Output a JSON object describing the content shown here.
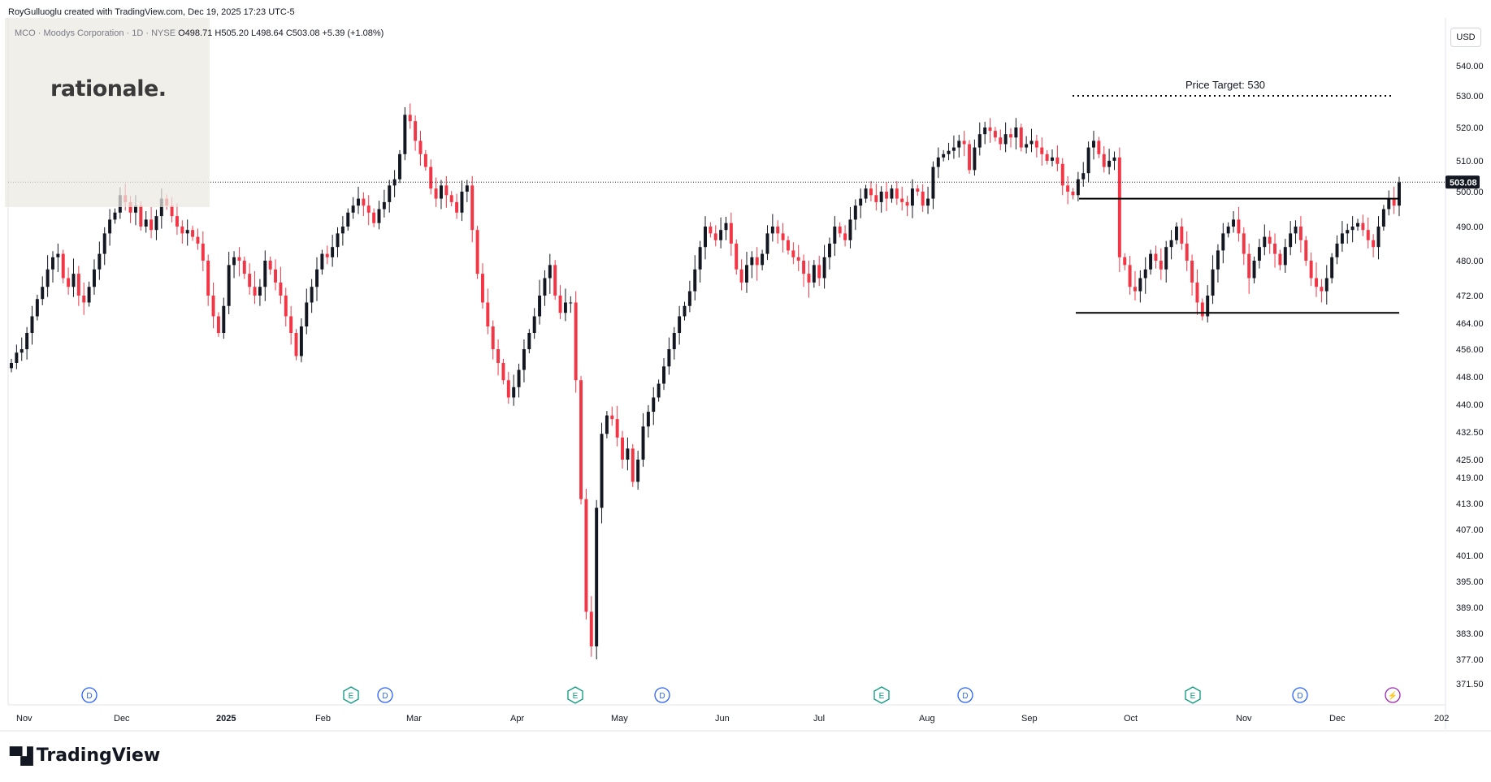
{
  "header": {
    "credit": "RoyGulluoglu created with TradingView.com, Dec 19, 2025 17:23 UTC-5",
    "symbol": "MCO · Moodys Corporation · 1D · NYSE",
    "ohlc": "O498.71  H505.20  L498.64  C503.08  +5.39 (+1.08%)"
  },
  "watermark": {
    "logo_text": "rationale."
  },
  "brand": {
    "name": "TradingView"
  },
  "price_scale": {
    "currency": "USD",
    "last_price_label": "503.08"
  },
  "annotation": {
    "price_target_label": "Price Target: 530"
  },
  "colors": {
    "up": "#131722",
    "down": "#f23645",
    "line": "#000000",
    "event_blue": "#2962ff",
    "event_green": "#089981",
    "event_purple": "#9c27b0"
  },
  "chart_data": {
    "type": "candlestick",
    "title": "MCO · Moodys Corporation · 1D · NYSE",
    "y_ticks": [
      371.5,
      377.0,
      383.0,
      389.0,
      395.0,
      401.0,
      407.0,
      413.0,
      419.0,
      425.0,
      432.5,
      440.0,
      448.0,
      456.0,
      464.0,
      472.0,
      480.0,
      490.0,
      500.0,
      510.0,
      520.0,
      530.0,
      540.0
    ],
    "y_tick_labels": [
      "371.50",
      "377.00",
      "383.00",
      "389.00",
      "395.00",
      "401.00",
      "407.00",
      "413.00",
      "419.00",
      "425.00",
      "432.50",
      "440.00",
      "448.00",
      "456.00",
      "464.00",
      "472.00",
      "480.00",
      "490.00",
      "500.00",
      "510.00",
      "520.00",
      "530.00",
      "540.00"
    ],
    "x_tick_labels": [
      "Nov",
      "Dec",
      "2025",
      "Feb",
      "Mar",
      "Apr",
      "May",
      "Jun",
      "Jul",
      "Aug",
      "Sep",
      "Oct",
      "Nov",
      "Dec",
      "202"
    ],
    "last_price": 503.08,
    "levels": [
      {
        "name": "price target",
        "value": 530,
        "style": "dotted"
      },
      {
        "name": "range top",
        "value": 498,
        "style": "solid"
      },
      {
        "name": "range bottom",
        "value": 467,
        "style": "solid"
      }
    ],
    "events": [
      {
        "label": "D",
        "month_label": "Nov",
        "kind": "dividend"
      },
      {
        "label": "E",
        "month_label": "Feb",
        "kind": "earnings"
      },
      {
        "label": "D",
        "month_label": "Feb",
        "kind": "dividend"
      },
      {
        "label": "E",
        "month_label": "Apr",
        "kind": "earnings"
      },
      {
        "label": "D",
        "month_label": "May",
        "kind": "dividend"
      },
      {
        "label": "E",
        "month_label": "Jul",
        "kind": "earnings"
      },
      {
        "label": "D",
        "month_label": "Aug",
        "kind": "dividend"
      },
      {
        "label": "E",
        "month_label": "Oct",
        "kind": "earnings"
      },
      {
        "label": "D",
        "month_label": "Nov",
        "kind": "dividend"
      },
      {
        "label": "⚡",
        "month_label": "Dec",
        "kind": "split/other"
      }
    ],
    "closes": [
      452,
      455,
      456,
      461,
      466,
      471,
      474,
      478,
      481,
      482,
      476,
      474,
      477,
      472,
      470,
      474,
      478,
      482,
      488,
      492,
      494,
      499,
      497,
      494,
      496,
      490,
      492,
      489,
      493,
      498,
      496,
      493,
      490,
      488,
      489,
      487,
      485,
      480,
      472,
      466,
      461,
      469,
      479,
      481,
      480,
      477,
      474,
      472,
      474,
      480,
      478,
      475,
      472,
      466,
      461,
      454,
      463,
      470,
      474,
      478,
      482,
      481,
      484,
      488,
      490,
      494,
      496,
      498,
      496,
      494,
      491,
      495,
      497,
      502,
      504,
      512,
      524,
      522,
      516,
      512,
      508,
      501,
      498,
      502,
      499,
      497,
      494,
      500,
      502,
      489,
      477,
      470,
      463,
      456,
      452,
      447,
      442,
      445,
      450,
      456,
      461,
      466,
      472,
      476,
      479,
      472,
      467,
      470,
      470,
      447,
      414,
      388,
      380,
      412,
      432,
      437,
      436,
      431,
      425,
      428,
      418,
      425,
      434,
      438,
      442,
      446,
      451,
      456,
      461,
      466,
      469,
      473,
      478,
      484,
      490,
      488,
      486,
      489,
      491,
      485,
      478,
      475,
      479,
      481,
      479,
      482,
      488,
      490,
      488,
      486,
      483,
      481,
      480,
      477,
      475,
      479,
      476,
      481,
      485,
      490,
      488,
      486,
      492,
      496,
      498,
      501,
      499,
      497,
      500,
      498,
      501,
      498,
      497,
      496,
      501,
      500,
      496,
      498,
      508,
      511,
      512,
      513,
      514,
      516,
      515,
      507,
      514,
      518,
      520,
      519,
      517,
      515,
      518,
      517,
      520,
      514,
      515,
      516,
      514,
      512,
      510,
      511,
      509,
      502,
      500,
      499,
      504,
      506,
      514,
      516,
      512,
      508,
      510,
      511,
      481,
      479,
      474,
      473,
      476,
      478,
      482,
      480,
      478,
      484,
      486,
      490,
      485,
      480,
      475,
      470,
      466,
      472,
      478,
      483,
      488,
      490,
      492,
      488,
      482,
      476,
      480,
      484,
      487,
      485,
      482,
      479,
      484,
      488,
      490,
      486,
      480,
      476,
      474,
      473,
      476,
      481,
      485,
      488,
      489,
      490,
      491,
      489,
      486,
      484,
      490,
      495,
      498,
      496,
      503
    ]
  }
}
